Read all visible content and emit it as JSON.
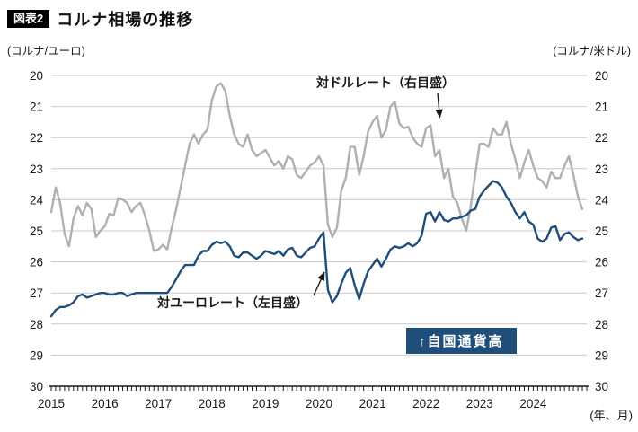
{
  "header": {
    "tag": "図表2",
    "title": "コルナ相場の推移"
  },
  "axes": {
    "left_unit": "(コルナ/ユーロ)",
    "right_unit": "(コルナ/米ドル)",
    "x_unit": "(年、月)",
    "y_ticks": [
      20,
      21,
      22,
      23,
      24,
      25,
      26,
      27,
      28,
      29,
      30
    ],
    "x_ticks": [
      "2015",
      "2016",
      "2017",
      "2018",
      "2019",
      "2020",
      "2021",
      "2022",
      "2023",
      "2024"
    ]
  },
  "annotations": {
    "usd_label": "対ドルレート（右目盛）",
    "eur_label": "対ユーロレート（左目盛）",
    "strength_badge": "↑自国通貨高"
  },
  "colors": {
    "eur_line": "#1f4e79",
    "usd_line": "#b0b0b0",
    "badge_bg": "#1f4e79",
    "grid": "#c9c9c9",
    "axis": "#1a1a1a"
  },
  "chart_data": {
    "type": "line",
    "title": "コルナ相場の推移",
    "x_start_year": 2015,
    "x_step": "month",
    "y_axis_inverted": true,
    "ylim": [
      20,
      30
    ],
    "left_axis_label": "コルナ/ユーロ",
    "right_axis_label": "コルナ/米ドル",
    "legend_position": "inline-annotations",
    "grid": true,
    "series": [
      {
        "name": "対ドルレート（右目盛）",
        "axis": "right",
        "color": "#b0b0b0",
        "values": [
          24.4,
          23.6,
          24.1,
          25.1,
          25.5,
          24.6,
          24.2,
          24.5,
          24.1,
          24.3,
          25.2,
          25.0,
          24.85,
          24.45,
          24.5,
          23.95,
          24.0,
          24.1,
          24.4,
          24.2,
          24.1,
          24.5,
          25.0,
          25.65,
          25.6,
          25.45,
          25.6,
          24.9,
          24.3,
          23.6,
          22.9,
          22.2,
          21.9,
          22.2,
          21.9,
          21.75,
          20.8,
          20.35,
          20.25,
          20.5,
          21.3,
          21.9,
          22.2,
          22.3,
          21.9,
          22.4,
          22.6,
          22.5,
          22.4,
          22.65,
          22.9,
          22.75,
          23.0,
          22.6,
          22.7,
          23.2,
          23.3,
          23.1,
          22.9,
          22.8,
          22.6,
          22.9,
          24.8,
          25.2,
          24.9,
          23.7,
          23.3,
          22.3,
          22.3,
          23.2,
          22.6,
          21.8,
          21.5,
          21.3,
          22.0,
          21.75,
          21.0,
          20.85,
          21.55,
          21.7,
          21.65,
          22.0,
          22.2,
          22.3,
          21.7,
          21.6,
          22.6,
          22.4,
          23.3,
          23.0,
          23.9,
          24.1,
          24.6,
          25.0,
          24.2,
          23.2,
          22.2,
          22.2,
          22.3,
          21.7,
          21.9,
          21.9,
          21.5,
          22.2,
          22.7,
          23.3,
          22.8,
          22.4,
          22.9,
          23.3,
          23.4,
          23.6,
          23.1,
          23.3,
          23.3,
          22.9,
          22.6,
          23.2,
          23.9,
          24.3
        ]
      },
      {
        "name": "対ユーロレート（左目盛）",
        "axis": "left",
        "color": "#1f4e79",
        "values": [
          27.75,
          27.55,
          27.45,
          27.45,
          27.4,
          27.3,
          27.1,
          27.05,
          27.15,
          27.1,
          27.05,
          27.0,
          27.0,
          27.05,
          27.05,
          27.0,
          27.0,
          27.1,
          27.05,
          27.0,
          27.0,
          27.0,
          27.0,
          27.0,
          27.0,
          27.0,
          27.0,
          26.8,
          26.55,
          26.3,
          26.1,
          26.1,
          26.1,
          25.8,
          25.65,
          25.65,
          25.45,
          25.35,
          25.4,
          25.35,
          25.5,
          25.8,
          25.85,
          25.7,
          25.7,
          25.8,
          25.9,
          25.8,
          25.65,
          25.7,
          25.75,
          25.65,
          25.8,
          25.6,
          25.55,
          25.8,
          25.85,
          25.7,
          25.55,
          25.5,
          25.25,
          25.05,
          26.9,
          27.3,
          27.1,
          26.7,
          26.35,
          26.2,
          26.75,
          27.2,
          26.7,
          26.3,
          26.1,
          25.9,
          26.15,
          25.9,
          25.6,
          25.5,
          25.55,
          25.5,
          25.4,
          25.5,
          25.4,
          25.15,
          24.45,
          24.4,
          24.7,
          24.4,
          24.65,
          24.7,
          24.6,
          24.6,
          24.55,
          24.5,
          24.35,
          24.3,
          23.9,
          23.7,
          23.55,
          23.4,
          23.45,
          23.6,
          23.9,
          24.1,
          24.4,
          24.6,
          24.4,
          24.7,
          24.8,
          25.25,
          25.35,
          25.25,
          24.9,
          24.85,
          25.3,
          25.1,
          25.05,
          25.2,
          25.3,
          25.25
        ]
      }
    ]
  }
}
